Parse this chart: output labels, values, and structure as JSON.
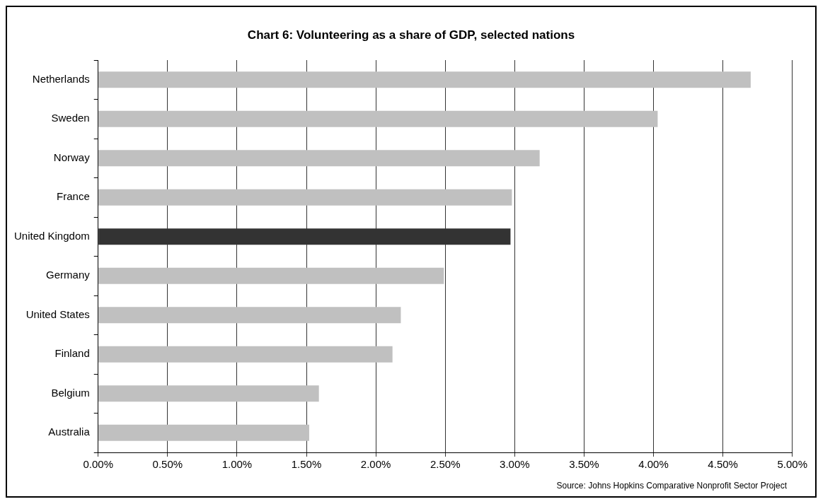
{
  "chart_data": {
    "type": "bar",
    "orientation": "horizontal",
    "title": "Chart 6: Volunteering as a share of GDP, selected nations",
    "categories": [
      "Netherlands",
      "Sweden",
      "Norway",
      "France",
      "United Kingdom",
      "Germany",
      "United States",
      "Finland",
      "Belgium",
      "Australia"
    ],
    "values": [
      4.7,
      4.03,
      3.18,
      2.98,
      2.97,
      2.49,
      2.18,
      2.12,
      1.59,
      1.52
    ],
    "colors": [
      "#c0c0c0",
      "#c0c0c0",
      "#c0c0c0",
      "#c0c0c0",
      "#333333",
      "#c0c0c0",
      "#c0c0c0",
      "#c0c0c0",
      "#c0c0c0",
      "#c0c0c0"
    ],
    "xlim": [
      0,
      5
    ],
    "xticks": [
      {
        "value": 0,
        "label": "0.00%"
      },
      {
        "value": 0.5,
        "label": "0.50%"
      },
      {
        "value": 1,
        "label": "1.00%"
      },
      {
        "value": 1.5,
        "label": "1.50%"
      },
      {
        "value": 2,
        "label": "2.00%"
      },
      {
        "value": 2.5,
        "label": "2.50%"
      },
      {
        "value": 3,
        "label": "3.00%"
      },
      {
        "value": 3.5,
        "label": "3.50%"
      },
      {
        "value": 4,
        "label": "4.00%"
      },
      {
        "value": 4.5,
        "label": "4.50%"
      },
      {
        "value": 5,
        "label": "5.00%"
      }
    ],
    "grid": "x",
    "annotations": [
      "Source: Johns Hopkins Comparative Nonprofit Sector Project"
    ]
  }
}
